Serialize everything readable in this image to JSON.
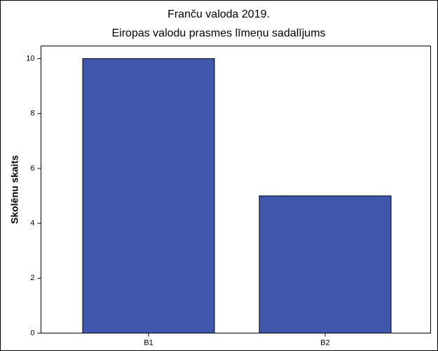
{
  "chart_data": {
    "type": "bar",
    "title": "Franču valoda 2019.",
    "subtitle": "Eiropas valodu prasmes līmeņu sadalījums",
    "y_label": "Skolēnu skaits",
    "categories": [
      "B1",
      "B2"
    ],
    "values": [
      10,
      5
    ],
    "color": "#3f58ad",
    "ylim": [
      0,
      10.46
    ],
    "yticks": [
      0,
      2,
      4,
      6,
      8,
      10
    ],
    "grid": false
  }
}
